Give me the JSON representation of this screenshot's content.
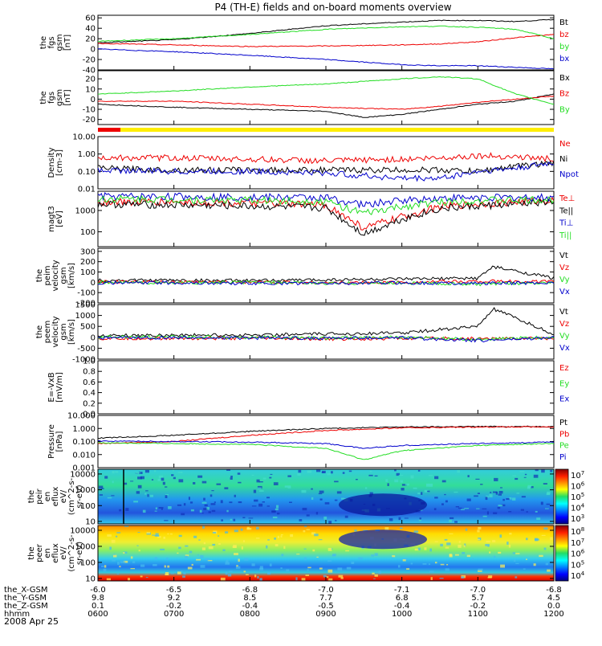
{
  "title": "P4 (TH-E) fields and on-board moments overview",
  "date": "2008 Apr 25",
  "colors": {
    "black": "#000000",
    "red": "#ee0000",
    "green": "#22dd22",
    "blue": "#0000cc"
  },
  "panels": [
    {
      "id": "fgs-gsm-1",
      "ylabel": [
        "the",
        "fgs",
        "gsm",
        "[nT]"
      ],
      "ticks": [
        "60",
        "40",
        "20",
        "0",
        "-20",
        "-40"
      ],
      "tick_values": [
        60,
        40,
        20,
        0,
        -20,
        -40
      ],
      "ylim": [
        -40,
        65
      ],
      "log": false,
      "legend": [
        {
          "label": "Bt",
          "color": "black"
        },
        {
          "label": "bz",
          "color": "red"
        },
        {
          "label": "by",
          "color": "green"
        },
        {
          "label": "bx",
          "color": "blue"
        }
      ]
    },
    {
      "id": "fgs-gsm-2",
      "ylabel": [
        "the",
        "fgs",
        "gsm",
        "[nT]"
      ],
      "ticks": [
        "20",
        "10",
        "0",
        "-10",
        "-20"
      ],
      "tick_values": [
        20,
        10,
        0,
        -10,
        -20
      ],
      "ylim": [
        -25,
        28
      ],
      "log": false,
      "legend": [
        {
          "label": "Bx",
          "color": "black"
        },
        {
          "label": "Bz",
          "color": "red"
        },
        {
          "label": "By",
          "color": "green"
        }
      ]
    },
    {
      "id": "density",
      "ylabel": [
        "Density",
        "[cm-3]"
      ],
      "ticks": [
        "10.00",
        "1.00",
        "0.10",
        "0.01"
      ],
      "tick_values": [
        10,
        1,
        0.1,
        0.01
      ],
      "ylim": [
        0.01,
        10
      ],
      "log": true,
      "legend": [
        {
          "label": "Ne",
          "color": "red"
        },
        {
          "label": "Ni",
          "color": "black"
        },
        {
          "label": "Npot",
          "color": "blue"
        }
      ]
    },
    {
      "id": "temperature",
      "ylabel": [
        "magt3",
        "[eV]"
      ],
      "ticks": [
        "1000",
        "100"
      ],
      "tick_values": [
        1000,
        100
      ],
      "ylim": [
        20,
        8000
      ],
      "log": true,
      "legend": [
        {
          "label": "Te⊥",
          "color": "red"
        },
        {
          "label": "Te||",
          "color": "black"
        },
        {
          "label": "Ti⊥",
          "color": "blue"
        },
        {
          "label": "Ti||",
          "color": "green"
        }
      ]
    },
    {
      "id": "ion-velocity",
      "ylabel": [
        "the",
        "peim",
        "velocity",
        "gsm",
        "[km/s]"
      ],
      "ticks": [
        "300",
        "200",
        "100",
        "0",
        "-100",
        "-200"
      ],
      "tick_values": [
        300,
        200,
        100,
        0,
        -100,
        -200
      ],
      "ylim": [
        -200,
        330
      ],
      "log": false,
      "legend": [
        {
          "label": "Vt",
          "color": "black"
        },
        {
          "label": "Vz",
          "color": "red"
        },
        {
          "label": "Vy",
          "color": "green"
        },
        {
          "label": "Vx",
          "color": "blue"
        }
      ]
    },
    {
      "id": "electron-velocity",
      "ylabel": [
        "the",
        "peem",
        "velocity",
        "gsm",
        "[km/s]"
      ],
      "ticks": [
        "1500",
        "1000",
        "500",
        "0",
        "-500",
        "-1000"
      ],
      "tick_values": [
        1500,
        1000,
        500,
        0,
        -500,
        -1000
      ],
      "ylim": [
        -1000,
        1500
      ],
      "log": false,
      "legend": [
        {
          "label": "Vt",
          "color": "black"
        },
        {
          "label": "Vz",
          "color": "red"
        },
        {
          "label": "Vy",
          "color": "green"
        },
        {
          "label": "Vx",
          "color": "blue"
        }
      ]
    },
    {
      "id": "efield",
      "ylabel": [
        "E=-VxB",
        "[mV/m]"
      ],
      "ticks": [
        "1.0",
        "0.8",
        "0.6",
        "0.4",
        "0.2",
        "0.0"
      ],
      "tick_values": [
        1.0,
        0.8,
        0.6,
        0.4,
        0.2,
        0.0
      ],
      "ylim": [
        0,
        1
      ],
      "log": false,
      "legend": [
        {
          "label": "Ez",
          "color": "red"
        },
        {
          "label": "Ey",
          "color": "green"
        },
        {
          "label": "Ex",
          "color": "blue"
        }
      ]
    },
    {
      "id": "pressure",
      "ylabel": [
        "Pressure",
        "[nPa]"
      ],
      "ticks": [
        "10.000",
        "1.000",
        "0.100",
        "0.010",
        "0.001"
      ],
      "tick_values": [
        10,
        1,
        0.1,
        0.01,
        0.001
      ],
      "ylim": [
        0.001,
        10
      ],
      "log": true,
      "legend": [
        {
          "label": "Pt",
          "color": "black"
        },
        {
          "label": "Pb",
          "color": "red"
        },
        {
          "label": "Pe",
          "color": "green"
        },
        {
          "label": "Pi",
          "color": "blue"
        }
      ]
    },
    {
      "id": "ion-spectrogram",
      "ylabel": [
        "the",
        "peir",
        "en",
        "eflux",
        "eV/",
        "(cm^2-s-",
        "sr-eV)"
      ],
      "ticks": [
        "10000",
        "1000",
        "100",
        "10"
      ],
      "tick_values": [
        10000,
        1000,
        100,
        10
      ],
      "ylim": [
        7,
        20000
      ],
      "log": true,
      "colorbar": [
        "10^7",
        "10^6",
        "10^5",
        "10^4",
        "10^3"
      ]
    },
    {
      "id": "electron-spectrogram",
      "ylabel": [
        "the",
        "peer",
        "en",
        "eflux",
        "eV/",
        "(cm^2-s-",
        "sr-eV)"
      ],
      "ticks": [
        "10000",
        "1000",
        "100",
        "10"
      ],
      "tick_values": [
        10000,
        1000,
        100,
        10
      ],
      "ylim": [
        7,
        20000
      ],
      "log": true,
      "colorbar": [
        "10^8",
        "10^7",
        "10^6",
        "10^5",
        "10^4"
      ]
    }
  ],
  "xaxis": {
    "rows": [
      {
        "label": "the_X-GSM",
        "values": [
          "-6.0",
          "-6.5",
          "-6.8",
          "-7.0",
          "-7.1",
          "-7.0",
          "-6.8"
        ]
      },
      {
        "label": "the_Y-GSM",
        "values": [
          "9.8",
          "9.2",
          "8.5",
          "7.7",
          "6.8",
          "5.7",
          "4.5"
        ]
      },
      {
        "label": "the_Z-GSM",
        "values": [
          "0.1",
          "-0.2",
          "-0.4",
          "-0.5",
          "-0.4",
          "-0.2",
          "0.0"
        ]
      },
      {
        "label": "hhmm",
        "values": [
          "0600",
          "0700",
          "0800",
          "0900",
          "1000",
          "1100",
          "1200"
        ]
      }
    ]
  },
  "chart_data": {
    "type": "line",
    "title": "P4 (TH-E) fields and on-board moments overview",
    "x_ticks": [
      "0600",
      "0700",
      "0800",
      "0900",
      "1000",
      "1100",
      "1200"
    ],
    "x_range_hours": [
      6,
      12
    ],
    "series": [
      {
        "panel": "fgs-gsm-1",
        "name": "Bt",
        "color": "black",
        "x": [
          6,
          7,
          8,
          9,
          10,
          10.5,
          11,
          11.5,
          12
        ],
        "values": [
          12,
          18,
          30,
          45,
          52,
          55,
          55,
          53,
          57
        ]
      },
      {
        "panel": "fgs-gsm-1",
        "name": "bz",
        "color": "red",
        "x": [
          6,
          7,
          8,
          9,
          10,
          10.5,
          11,
          11.5,
          12
        ],
        "values": [
          11,
          8,
          5,
          6,
          8,
          10,
          14,
          22,
          28
        ]
      },
      {
        "panel": "fgs-gsm-1",
        "name": "by",
        "color": "green",
        "x": [
          6,
          7,
          8,
          9,
          10,
          10.5,
          11,
          11.5,
          12
        ],
        "values": [
          15,
          20,
          28,
          38,
          43,
          44,
          42,
          38,
          20
        ]
      },
      {
        "panel": "fgs-gsm-1",
        "name": "bx",
        "color": "blue",
        "x": [
          6,
          7,
          8,
          9,
          10,
          10.5,
          11,
          11.5,
          12
        ],
        "values": [
          0,
          -5,
          -12,
          -20,
          -30,
          -32,
          -32,
          -35,
          -38
        ]
      },
      {
        "panel": "fgs-gsm-2",
        "name": "Bx",
        "color": "black",
        "x": [
          6,
          7,
          8,
          9,
          9.5,
          10,
          10.5,
          11,
          11.5,
          12
        ],
        "values": [
          -5,
          -8,
          -10,
          -12,
          -18,
          -15,
          -10,
          -5,
          -2,
          5
        ]
      },
      {
        "panel": "fgs-gsm-2",
        "name": "Bz",
        "color": "red",
        "x": [
          6,
          7,
          8,
          9,
          10,
          10.5,
          11,
          11.5,
          12
        ],
        "values": [
          -2,
          -2,
          -5,
          -8,
          -10,
          -7,
          -3,
          0,
          3
        ]
      },
      {
        "panel": "fgs-gsm-2",
        "name": "By",
        "color": "green",
        "x": [
          6,
          7,
          8,
          9,
          10,
          10.5,
          11,
          11.5,
          12
        ],
        "values": [
          5,
          8,
          12,
          15,
          20,
          22,
          20,
          5,
          -5
        ]
      },
      {
        "panel": "density",
        "name": "Ne",
        "color": "red",
        "x": [
          6,
          7,
          8,
          9,
          10,
          10.5,
          11,
          11.5,
          12
        ],
        "values": [
          0.6,
          0.6,
          0.5,
          0.4,
          0.5,
          0.6,
          0.8,
          0.7,
          0.5
        ]
      },
      {
        "panel": "density",
        "name": "Ni",
        "color": "black",
        "x": [
          6,
          7,
          8,
          9,
          10,
          10.5,
          11,
          11.5,
          12
        ],
        "values": [
          0.15,
          0.12,
          0.12,
          0.12,
          0.12,
          0.12,
          0.1,
          0.2,
          0.3
        ]
      },
      {
        "panel": "density",
        "name": "Npot",
        "color": "blue",
        "x": [
          6,
          7,
          8,
          9,
          10,
          10.5,
          11,
          11.5,
          12
        ],
        "values": [
          0.12,
          0.1,
          0.1,
          0.08,
          0.04,
          0.04,
          0.1,
          0.15,
          0.3
        ]
      },
      {
        "panel": "temperature",
        "name": "Te⊥",
        "color": "red",
        "x": [
          6,
          7,
          8,
          9,
          9.5,
          10,
          10.5,
          11,
          11.5,
          12
        ],
        "values": [
          2500,
          2500,
          2200,
          1800,
          150,
          500,
          1500,
          2000,
          2500,
          3000
        ]
      },
      {
        "panel": "temperature",
        "name": "Te||",
        "color": "black",
        "x": [
          6,
          7,
          8,
          9,
          9.5,
          10,
          10.5,
          11,
          11.5,
          12
        ],
        "values": [
          2000,
          1800,
          1600,
          1300,
          80,
          400,
          1200,
          1600,
          2000,
          2500
        ]
      },
      {
        "panel": "temperature",
        "name": "Ti⊥",
        "color": "blue",
        "x": [
          6,
          7,
          8,
          9,
          9.5,
          10,
          10.5,
          11,
          11.5,
          12
        ],
        "values": [
          4500,
          4500,
          4200,
          4000,
          1800,
          3000,
          3800,
          4000,
          4000,
          4000
        ]
      },
      {
        "panel": "temperature",
        "name": "Ti||",
        "color": "green",
        "x": [
          6,
          7,
          8,
          9,
          9.5,
          10,
          10.5,
          11,
          11.5,
          12
        ],
        "values": [
          3500,
          3300,
          3000,
          2700,
          700,
          1500,
          2500,
          3000,
          3000,
          3000
        ]
      },
      {
        "panel": "ion-velocity",
        "name": "Vt",
        "color": "black",
        "x": [
          6,
          7,
          8,
          9,
          10,
          11,
          11.2,
          12
        ],
        "values": [
          20,
          20,
          15,
          25,
          30,
          40,
          150,
          40
        ]
      },
      {
        "panel": "ion-velocity",
        "name": "Vz",
        "color": "red",
        "x": [
          6,
          7,
          8,
          9,
          10,
          11,
          12
        ],
        "values": [
          5,
          0,
          5,
          -5,
          0,
          10,
          5
        ]
      },
      {
        "panel": "ion-velocity",
        "name": "Vy",
        "color": "green",
        "x": [
          6,
          7,
          8,
          9,
          10,
          11,
          12
        ],
        "values": [
          0,
          -5,
          0,
          -10,
          -5,
          -20,
          0
        ]
      },
      {
        "panel": "ion-velocity",
        "name": "Vx",
        "color": "blue",
        "x": [
          6,
          7,
          8,
          9,
          10,
          11,
          12
        ],
        "values": [
          -5,
          -5,
          -10,
          -10,
          -5,
          -10,
          -5
        ]
      },
      {
        "panel": "electron-velocity",
        "name": "Vt",
        "color": "black",
        "x": [
          6,
          7,
          8,
          9,
          10,
          11,
          11.2,
          12
        ],
        "values": [
          80,
          100,
          100,
          150,
          200,
          500,
          1300,
          150
        ]
      },
      {
        "panel": "electron-velocity",
        "name": "Vz",
        "color": "red",
        "x": [
          6,
          7,
          8,
          9,
          10,
          11,
          12
        ],
        "values": [
          -60,
          -50,
          -40,
          -80,
          -50,
          -60,
          -40
        ]
      },
      {
        "panel": "electron-velocity",
        "name": "Vy",
        "color": "green",
        "x": [
          6,
          7,
          8,
          9,
          10,
          11,
          12
        ],
        "values": [
          0,
          20,
          0,
          -30,
          0,
          -100,
          0
        ]
      },
      {
        "panel": "electron-velocity",
        "name": "Vx",
        "color": "blue",
        "x": [
          6,
          7,
          8,
          9,
          10,
          11,
          12
        ],
        "values": [
          -20,
          -20,
          -30,
          -40,
          -20,
          -150,
          -20
        ]
      },
      {
        "panel": "pressure",
        "name": "Pt",
        "color": "black",
        "x": [
          6,
          7,
          8,
          9,
          10,
          11,
          12
        ],
        "values": [
          0.18,
          0.3,
          0.6,
          1.0,
          1.3,
          1.4,
          1.4
        ]
      },
      {
        "panel": "pressure",
        "name": "Pb",
        "color": "red",
        "x": [
          6,
          7,
          8,
          9,
          10,
          11,
          12
        ],
        "values": [
          0.07,
          0.1,
          0.3,
          0.7,
          1.1,
          1.3,
          1.3
        ]
      },
      {
        "panel": "pressure",
        "name": "Pe",
        "color": "green",
        "x": [
          6,
          7,
          8,
          9,
          9.5,
          10,
          11,
          12
        ],
        "values": [
          0.08,
          0.07,
          0.06,
          0.03,
          0.004,
          0.02,
          0.05,
          0.07
        ]
      },
      {
        "panel": "pressure",
        "name": "Pi",
        "color": "blue",
        "x": [
          6,
          7,
          8,
          9,
          9.5,
          10,
          11,
          12
        ],
        "values": [
          0.11,
          0.1,
          0.09,
          0.07,
          0.03,
          0.05,
          0.07,
          0.09
        ]
      }
    ]
  }
}
